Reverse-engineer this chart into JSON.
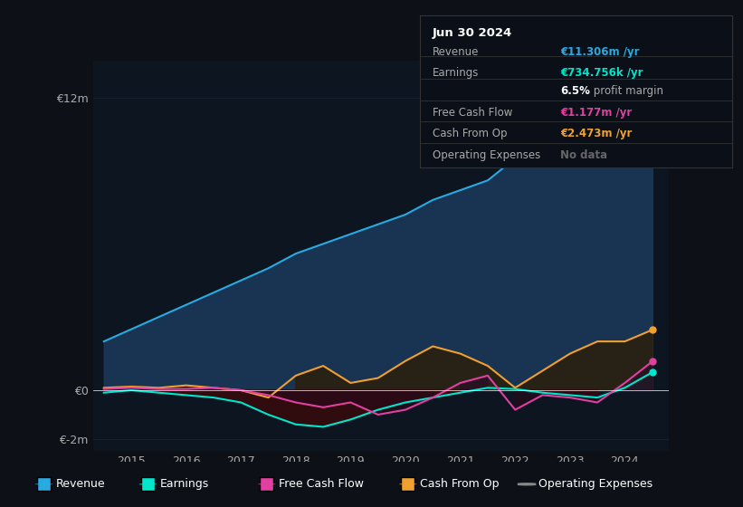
{
  "background_color": "#0d1117",
  "plot_bg_color": "#0d1520",
  "grid_color": "#1e2d3d",
  "years": [
    2014.5,
    2015.0,
    2015.5,
    2016.0,
    2016.5,
    2017.0,
    2017.5,
    2018.0,
    2018.5,
    2019.0,
    2019.5,
    2020.0,
    2020.5,
    2021.0,
    2021.5,
    2022.0,
    2022.5,
    2023.0,
    2023.5,
    2024.0,
    2024.5
  ],
  "revenue": [
    2.0,
    2.5,
    3.0,
    3.5,
    4.0,
    4.5,
    5.0,
    5.6,
    6.0,
    6.4,
    6.8,
    7.2,
    7.8,
    8.2,
    8.6,
    9.5,
    11.0,
    11.3,
    11.5,
    11.4,
    11.306
  ],
  "earnings": [
    -0.1,
    0.0,
    -0.1,
    -0.2,
    -0.3,
    -0.5,
    -1.0,
    -1.4,
    -1.5,
    -1.2,
    -0.8,
    -0.5,
    -0.3,
    -0.1,
    0.1,
    0.05,
    -0.1,
    -0.2,
    -0.3,
    0.1,
    0.735
  ],
  "free_cash_flow": [
    0.05,
    0.1,
    0.05,
    0.05,
    0.1,
    0.0,
    -0.2,
    -0.5,
    -0.7,
    -0.5,
    -1.0,
    -0.8,
    -0.3,
    0.3,
    0.6,
    -0.8,
    -0.2,
    -0.3,
    -0.5,
    0.3,
    1.177
  ],
  "cash_from_op": [
    0.1,
    0.15,
    0.1,
    0.2,
    0.1,
    0.0,
    -0.3,
    0.6,
    1.0,
    0.3,
    0.5,
    1.2,
    1.8,
    1.5,
    1.0,
    0.1,
    0.8,
    1.5,
    2.0,
    2.0,
    2.473
  ],
  "revenue_color": "#29aae1",
  "revenue_fill": "#1a3a5c",
  "earnings_color": "#00e5cc",
  "earnings_fill_pos": "#1a4a3a",
  "earnings_fill_neg": "#4a1a1a",
  "free_cash_flow_color": "#e040a0",
  "free_cash_flow_fill_pos": "#3a1a3a",
  "free_cash_flow_fill_neg": "#3a1a2a",
  "cash_from_op_color": "#f0a030",
  "cash_from_op_fill_pos": "#3a2a10",
  "cash_from_op_fill_neg": "#3a1a10",
  "ylim_min": -2.5,
  "ylim_max": 13.5,
  "xlim_min": 2014.3,
  "xlim_max": 2024.8,
  "yticks": [
    -2,
    0,
    12
  ],
  "ytick_labels": [
    "€-2m",
    "€0",
    "€12m"
  ],
  "xticks": [
    2015,
    2016,
    2017,
    2018,
    2019,
    2020,
    2021,
    2022,
    2023,
    2024
  ],
  "info_box": {
    "title": "Jun 30 2024",
    "rows": [
      {
        "label": "Revenue",
        "value": "€11.306m /yr",
        "value_color": "#29aae1"
      },
      {
        "label": "Earnings",
        "value": "€734.756k /yr",
        "value_color": "#00e5cc"
      },
      {
        "label": "",
        "value": "6.5% profit margin",
        "value_color": "#aaaaaa",
        "bold_prefix": "6.5%"
      },
      {
        "label": "Free Cash Flow",
        "value": "€1.177m /yr",
        "value_color": "#e040a0"
      },
      {
        "label": "Cash From Op",
        "value": "€2.473m /yr",
        "value_color": "#f0a030"
      },
      {
        "label": "Operating Expenses",
        "value": "No data",
        "value_color": "#666666"
      }
    ]
  },
  "legend_items": [
    {
      "label": "Revenue",
      "color": "#29aae1",
      "filled": true
    },
    {
      "label": "Earnings",
      "color": "#00e5cc",
      "filled": true
    },
    {
      "label": "Free Cash Flow",
      "color": "#e040a0",
      "filled": true
    },
    {
      "label": "Cash From Op",
      "color": "#f0a030",
      "filled": true
    },
    {
      "label": "Operating Expenses",
      "color": "#888888",
      "filled": false
    }
  ]
}
